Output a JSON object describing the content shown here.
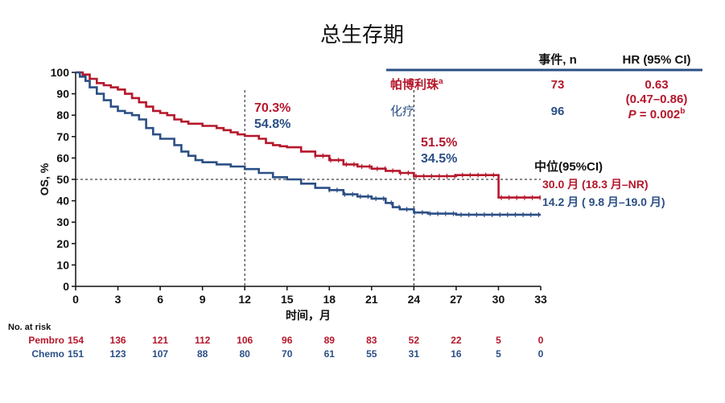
{
  "title": "总生存期",
  "chart_data": {
    "type": "line",
    "xlabel": "时间，月",
    "ylabel": "OS, %",
    "xlim": [
      0,
      33
    ],
    "ylim": [
      0,
      100
    ],
    "xticks": [
      0,
      3,
      6,
      9,
      12,
      15,
      18,
      21,
      24,
      27,
      30,
      33
    ],
    "yticks": [
      0,
      10,
      20,
      30,
      40,
      50,
      60,
      70,
      80,
      90,
      100
    ],
    "reference_lines": {
      "y": 50,
      "x": [
        12,
        24
      ]
    },
    "series": [
      {
        "name": "帕博利珠",
        "color": "#b5172b",
        "points": [
          [
            0,
            100
          ],
          [
            0.5,
            99
          ],
          [
            1,
            97
          ],
          [
            1.5,
            95
          ],
          [
            2,
            94
          ],
          [
            2.5,
            93
          ],
          [
            3,
            92
          ],
          [
            3.5,
            90
          ],
          [
            4,
            88
          ],
          [
            4.5,
            86
          ],
          [
            5,
            84
          ],
          [
            5.5,
            82
          ],
          [
            6,
            81
          ],
          [
            6.5,
            80
          ],
          [
            7,
            78
          ],
          [
            7.5,
            77
          ],
          [
            8,
            76
          ],
          [
            9,
            75
          ],
          [
            10,
            74
          ],
          [
            10.5,
            73
          ],
          [
            11,
            72
          ],
          [
            11.5,
            71
          ],
          [
            12,
            70.3
          ],
          [
            13,
            69
          ],
          [
            13.5,
            67
          ],
          [
            14,
            66
          ],
          [
            14.5,
            65.5
          ],
          [
            15,
            65
          ],
          [
            16,
            63
          ],
          [
            17,
            61
          ],
          [
            18,
            59
          ],
          [
            19,
            57
          ],
          [
            20,
            56
          ],
          [
            21,
            55
          ],
          [
            22,
            54
          ],
          [
            23,
            53
          ],
          [
            24,
            51.5
          ],
          [
            25,
            51.5
          ],
          [
            26,
            51.5
          ],
          [
            27,
            52
          ],
          [
            28,
            52
          ],
          [
            29,
            52
          ],
          [
            30,
            52
          ],
          [
            30.01,
            41.5
          ],
          [
            33,
            41.5
          ]
        ]
      },
      {
        "name": "化疗",
        "color": "#2b4f85",
        "points": [
          [
            0,
            100
          ],
          [
            0.3,
            98
          ],
          [
            0.7,
            96
          ],
          [
            1,
            93
          ],
          [
            1.5,
            90
          ],
          [
            2,
            87
          ],
          [
            2.5,
            84
          ],
          [
            3,
            82
          ],
          [
            3.5,
            81
          ],
          [
            4,
            80
          ],
          [
            4.5,
            78
          ],
          [
            5,
            74
          ],
          [
            5.5,
            71
          ],
          [
            6,
            69
          ],
          [
            7,
            66
          ],
          [
            7.5,
            63
          ],
          [
            8,
            61
          ],
          [
            8.5,
            59
          ],
          [
            9,
            58
          ],
          [
            10,
            57
          ],
          [
            11,
            56
          ],
          [
            12,
            54.8
          ],
          [
            13,
            53
          ],
          [
            14,
            51
          ],
          [
            15,
            50
          ],
          [
            16,
            48
          ],
          [
            17,
            46
          ],
          [
            18,
            45
          ],
          [
            19,
            43
          ],
          [
            20,
            42
          ],
          [
            21,
            41
          ],
          [
            22,
            39
          ],
          [
            22.5,
            37
          ],
          [
            23,
            36
          ],
          [
            24,
            34.5
          ],
          [
            25,
            34
          ],
          [
            27,
            33.5
          ],
          [
            30,
            33.5
          ],
          [
            33,
            33.5
          ]
        ]
      }
    ],
    "landmarks": [
      {
        "month": 12,
        "pembro": "70.3%",
        "chemo": "54.8%"
      },
      {
        "month": 24,
        "pembro": "51.5%",
        "chemo": "34.5%"
      }
    ],
    "median": {
      "header": "中位(95%CI)",
      "pembro": "30.0 月 (18.3 月–NR)",
      "chemo": "14.2 月 ( 9.8 月–19.0 月)"
    },
    "table": {
      "headers": [
        "事件, n",
        "HR (95% CI)"
      ],
      "pembro": {
        "name": "帕博利珠",
        "sup": "a",
        "events": "73",
        "hr": "0.63",
        "ci": "(0.47–0.86)",
        "p_label": "P",
        "p_value": " = 0.002",
        "p_sup": "b"
      },
      "chemo": {
        "name": "化疗",
        "events": "96"
      }
    },
    "risk_table": {
      "label": "No. at risk",
      "rows": [
        {
          "name": "Pembro",
          "values": [
            154,
            136,
            121,
            112,
            106,
            96,
            89,
            83,
            52,
            22,
            5,
            0
          ]
        },
        {
          "name": "Chemo",
          "values": [
            151,
            123,
            107,
            88,
            80,
            70,
            61,
            55,
            31,
            16,
            5,
            0
          ]
        }
      ]
    }
  }
}
